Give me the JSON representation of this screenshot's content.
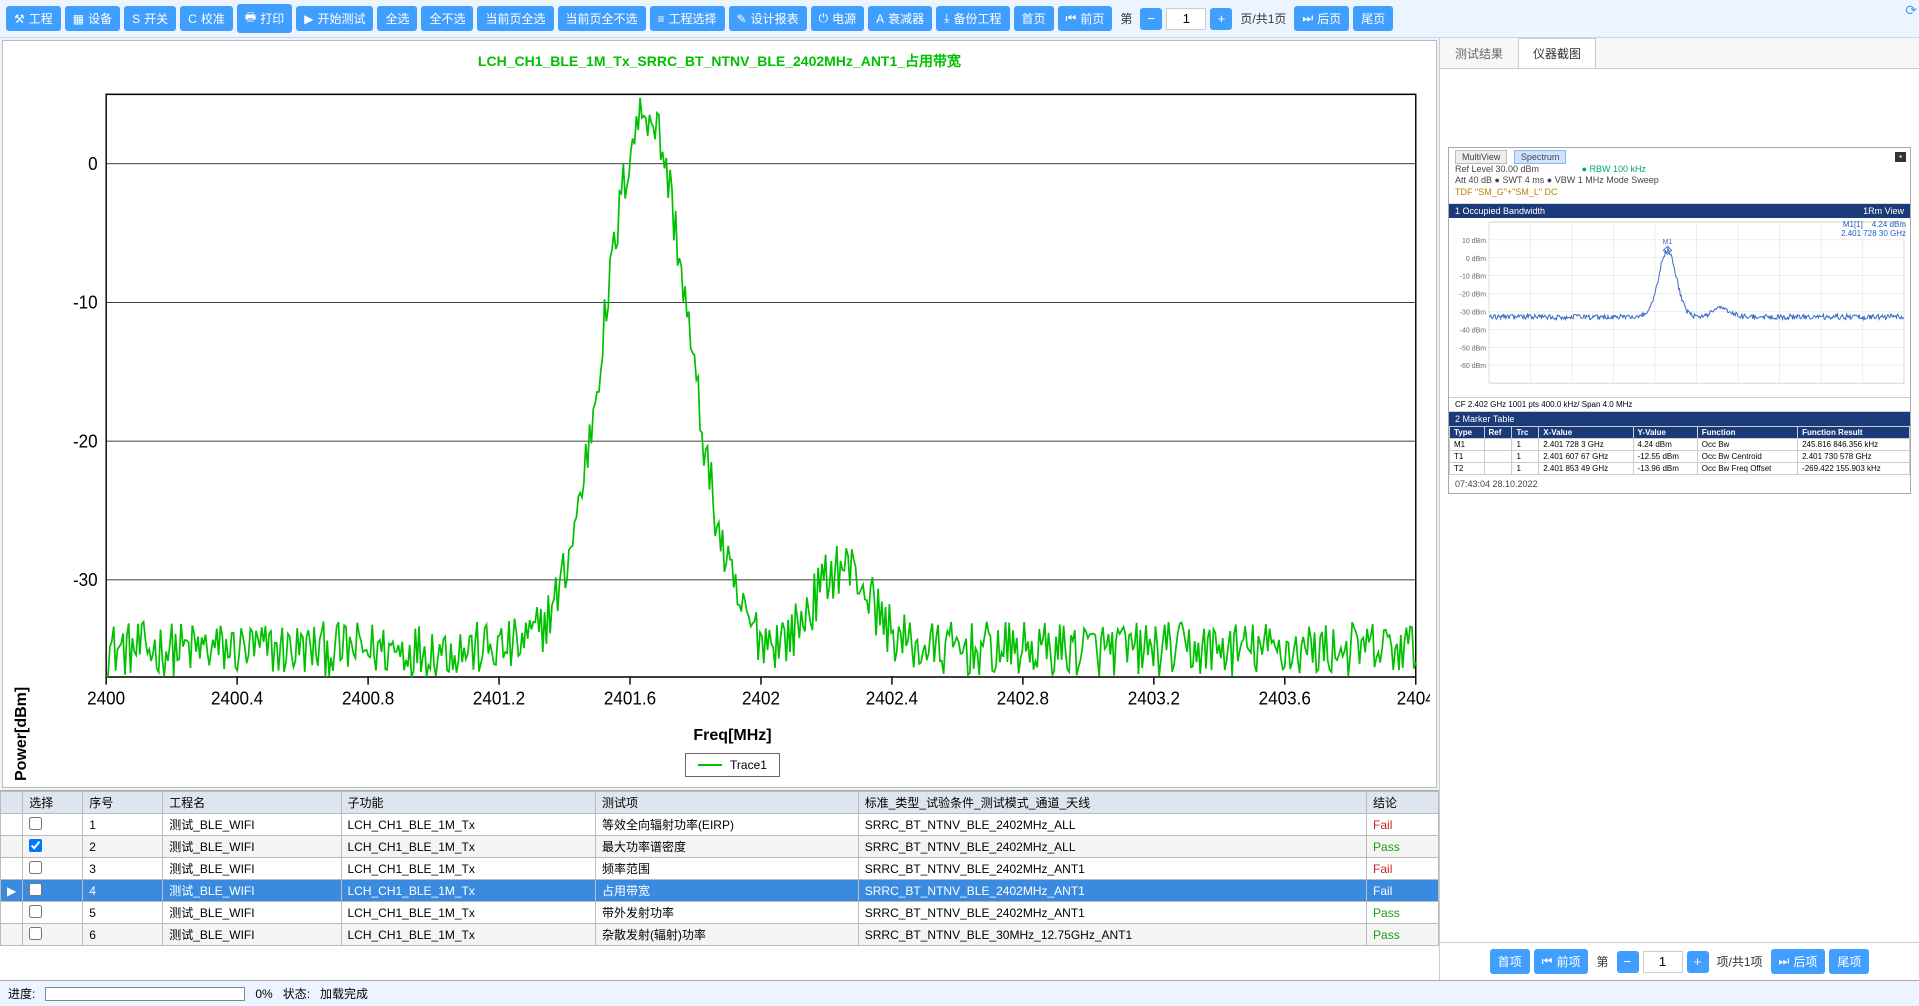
{
  "toolbar": {
    "project": "工程",
    "device": "设备",
    "switch": "开关",
    "calibrate": "校准",
    "print": "打印",
    "start_test": "开始测试",
    "select_all": "全选",
    "select_none": "全不选",
    "page_select_all": "当前页全选",
    "page_select_none": "当前页全不选",
    "project_select": "工程选择",
    "design_report": "设计报表",
    "power": "电源",
    "attenuator": "衰减器",
    "backup_project": "备份工程",
    "first_page": "首页",
    "prev_page": "前页",
    "page_prefix": "第",
    "page_value": "1",
    "page_suffix": "页/共1页",
    "next_page": "后页",
    "last_page": "尾页"
  },
  "chart": {
    "title": "LCH_CH1_BLE_1M_Tx_SRRC_BT_NTNV_BLE_2402MHz_ANT1_占用带宽",
    "ylabel": "Power[dBm]",
    "xlabel": "Freq[MHz]",
    "legend": "Trace1",
    "xmin": 2400,
    "xmax": 2404,
    "ymin": -37,
    "ymax": 5,
    "yticks": [
      0,
      -10,
      -20,
      -30
    ],
    "xticks": [
      2400,
      2400.4,
      2400.8,
      2401.2,
      2401.6,
      2402,
      2402.4,
      2402.8,
      2403.2,
      2403.6,
      2404
    ],
    "trace_color": "#00c000",
    "noise_floor": -35,
    "noise_amp": 2.0,
    "peak_center": 2401.65,
    "peak_value": 3.8,
    "peak_halfwidth": 0.18,
    "bump_center": 2402.25,
    "bump_value": -29,
    "bump_halfwidth": 0.12
  },
  "right_panel": {
    "tab_results": "测试结果",
    "tab_screenshots": "仪器截图",
    "instr": {
      "multiview": "MultiView",
      "spectrum": "Spectrum",
      "ref": "Ref Level  30.00 dBm",
      "rbw": "● RBW   100 kHz",
      "att": "Att          40 dB ● SWT 4 ms ● VBW   1 MHz   Mode  Sweep",
      "tdf": "TDF \"SM_G\"+\"SM_L\"  DC",
      "bar_left": "1 Occupied Bandwidth",
      "bar_right": "1Rm View",
      "m1_label": "M1[1]",
      "m1_v1": "4.24 dBm",
      "m1_v2": "2.401 728 30 GHz",
      "yticks": [
        "10 dBm",
        "0 dBm",
        "-10 dBm",
        "-20 dBm",
        "-30 dBm",
        "-40 dBm",
        "-50 dBm",
        "-60 dBm"
      ],
      "plot_stats": "CF 2.402 GHz                                 1001 pts                          400.0 kHz/                                        Span 4.0 MHz",
      "marker_header": "2 Marker Table",
      "marker_cols": [
        "Type",
        "Ref",
        "Trc",
        "X-Value",
        "Y-Value",
        "Function",
        "Function Result"
      ],
      "markers": [
        [
          "M1",
          "",
          "1",
          "2.401 728 3 GHz",
          "4.24 dBm",
          "Occ Bw",
          "245.816 846.356 kHz"
        ],
        [
          "T1",
          "",
          "1",
          "2.401 607 67 GHz",
          "-12.55 dBm",
          "Occ Bw Centroid",
          "2.401 730 578 GHz"
        ],
        [
          "T2",
          "",
          "1",
          "2.401 853 49 GHz",
          "-13.96 dBm",
          "Occ Bw Freq Offset",
          "-269.422 155.903 kHz"
        ]
      ],
      "timestamp": "07:43:04   28.10.2022"
    },
    "pager": {
      "first": "首项",
      "prev": "前项",
      "prefix": "第",
      "value": "1",
      "suffix": "项/共1项",
      "next": "后项",
      "last": "尾项"
    }
  },
  "results": {
    "headers": [
      "",
      "选择",
      "序号",
      "工程名",
      "子功能",
      "测试项",
      "标准_类型_试验条件_测试模式_通道_天线",
      "结论"
    ],
    "rows": [
      {
        "chk": false,
        "idx": "1",
        "proj": "测试_BLE_WIFI",
        "sub": "LCH_CH1_BLE_1M_Tx",
        "item": "等效全向辐射功率(EIRP)",
        "std": "SRRC_BT_NTNV_BLE_2402MHz_ALL",
        "verdict": "Fail"
      },
      {
        "chk": true,
        "idx": "2",
        "proj": "测试_BLE_WIFI",
        "sub": "LCH_CH1_BLE_1M_Tx",
        "item": "最大功率谱密度",
        "std": "SRRC_BT_NTNV_BLE_2402MHz_ALL",
        "verdict": "Pass"
      },
      {
        "chk": false,
        "idx": "3",
        "proj": "测试_BLE_WIFI",
        "sub": "LCH_CH1_BLE_1M_Tx",
        "item": "频率范围",
        "std": "SRRC_BT_NTNV_BLE_2402MHz_ANT1",
        "verdict": "Fail"
      },
      {
        "chk": false,
        "idx": "4",
        "proj": "测试_BLE_WIFI",
        "sub": "LCH_CH1_BLE_1M_Tx",
        "item": "占用带宽",
        "std": "SRRC_BT_NTNV_BLE_2402MHz_ANT1",
        "verdict": "Fail",
        "selected": true
      },
      {
        "chk": false,
        "idx": "5",
        "proj": "测试_BLE_WIFI",
        "sub": "LCH_CH1_BLE_1M_Tx",
        "item": "带外发射功率",
        "std": "SRRC_BT_NTNV_BLE_2402MHz_ANT1",
        "verdict": "Pass"
      },
      {
        "chk": false,
        "idx": "6",
        "proj": "测试_BLE_WIFI",
        "sub": "LCH_CH1_BLE_1M_Tx",
        "item": "杂散发射(辐射)功率",
        "std": "SRRC_BT_NTNV_BLE_30MHz_12.75GHz_ANT1",
        "verdict": "Pass"
      }
    ]
  },
  "status": {
    "progress_label": "进度:",
    "percent": "0%",
    "state_label": "状态:",
    "state_value": "加载完成"
  }
}
